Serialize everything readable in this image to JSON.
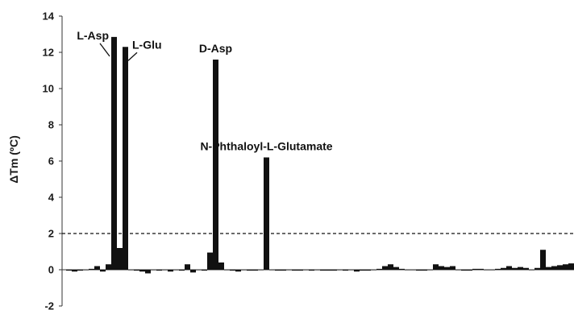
{
  "chart_data": {
    "type": "bar",
    "title": "",
    "xlabel": "",
    "ylabel": "ΔTm (ºC)",
    "ylim": [
      -2,
      14
    ],
    "yticks": [
      -2,
      0,
      2,
      4,
      6,
      8,
      10,
      12,
      14
    ],
    "grid": false,
    "legend": "none",
    "threshold": 2,
    "bar_color": "#111111",
    "values": [
      -0.05,
      -0.1,
      -0.05,
      0.0,
      0.05,
      0.2,
      -0.1,
      0.3,
      12.85,
      1.2,
      12.3,
      0.0,
      -0.05,
      -0.1,
      -0.2,
      0.0,
      -0.05,
      0.0,
      -0.1,
      0.0,
      -0.05,
      0.3,
      -0.15,
      0.0,
      -0.05,
      0.95,
      11.6,
      0.4,
      0.0,
      -0.05,
      -0.1,
      0.0,
      -0.05,
      -0.05,
      0.0,
      6.2,
      0.0,
      -0.05,
      -0.05,
      0.0,
      -0.05,
      -0.05,
      0.0,
      -0.05,
      0.0,
      -0.05,
      -0.05,
      -0.05,
      0.0,
      -0.05,
      0.0,
      -0.1,
      -0.05,
      -0.05,
      0.0,
      0.05,
      0.2,
      0.3,
      0.15,
      0.05,
      0.0,
      0.0,
      -0.05,
      -0.05,
      0.0,
      0.3,
      0.2,
      0.15,
      0.2,
      0.0,
      -0.05,
      -0.05,
      0.05,
      0.05,
      0.0,
      0.0,
      0.05,
      0.1,
      0.2,
      0.1,
      0.15,
      0.1,
      0.0,
      0.1,
      1.1,
      0.15,
      0.2,
      0.25,
      0.3,
      0.35,
      0.25,
      0.15,
      0.3,
      0.2,
      0.35,
      0.45
    ],
    "annotations": [
      {
        "text": "L-Asp",
        "bar_index": 8
      },
      {
        "text": "L-Glu",
        "bar_index": 10
      },
      {
        "text": "D-Asp",
        "bar_index": 26
      },
      {
        "text": "N-Phthaloyl-L-Glutamate",
        "bar_index": 35
      }
    ]
  }
}
